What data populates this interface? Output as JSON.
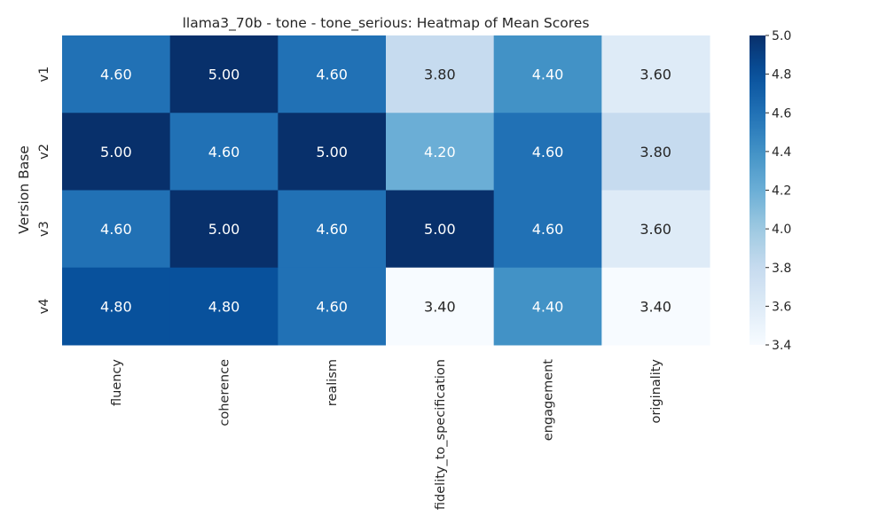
{
  "chart_data": {
    "type": "heatmap",
    "title": "llama3_70b - tone - tone_serious: Heatmap of Mean Scores",
    "xlabel": "",
    "ylabel": "Version Base",
    "rows": [
      "v1",
      "v2",
      "v3",
      "v4"
    ],
    "columns": [
      "fluency",
      "coherence",
      "realism",
      "fidelity_to_specification",
      "engagement",
      "originality"
    ],
    "values": [
      [
        4.6,
        5.0,
        4.6,
        3.8,
        4.4,
        3.6
      ],
      [
        5.0,
        4.6,
        5.0,
        4.2,
        4.6,
        3.8
      ],
      [
        4.6,
        5.0,
        4.6,
        5.0,
        4.6,
        3.6
      ],
      [
        4.8,
        4.8,
        4.6,
        3.4,
        4.4,
        3.4
      ]
    ],
    "value_format": "0.00",
    "colormap": "Blues",
    "vmin": 3.4,
    "vmax": 5.0,
    "colorbar_ticks": [
      3.4,
      3.6,
      3.8,
      4.0,
      4.2,
      4.4,
      4.6,
      4.8,
      5.0
    ],
    "colorbar_tick_labels": [
      "3.4",
      "3.6",
      "3.8",
      "4.0",
      "4.2",
      "4.4",
      "4.6",
      "4.8",
      "5.0"
    ],
    "colors": {
      "low": "#f7fbff",
      "high": "#08306b",
      "text_dark": "#262626",
      "text_light": "#ffffff"
    }
  }
}
